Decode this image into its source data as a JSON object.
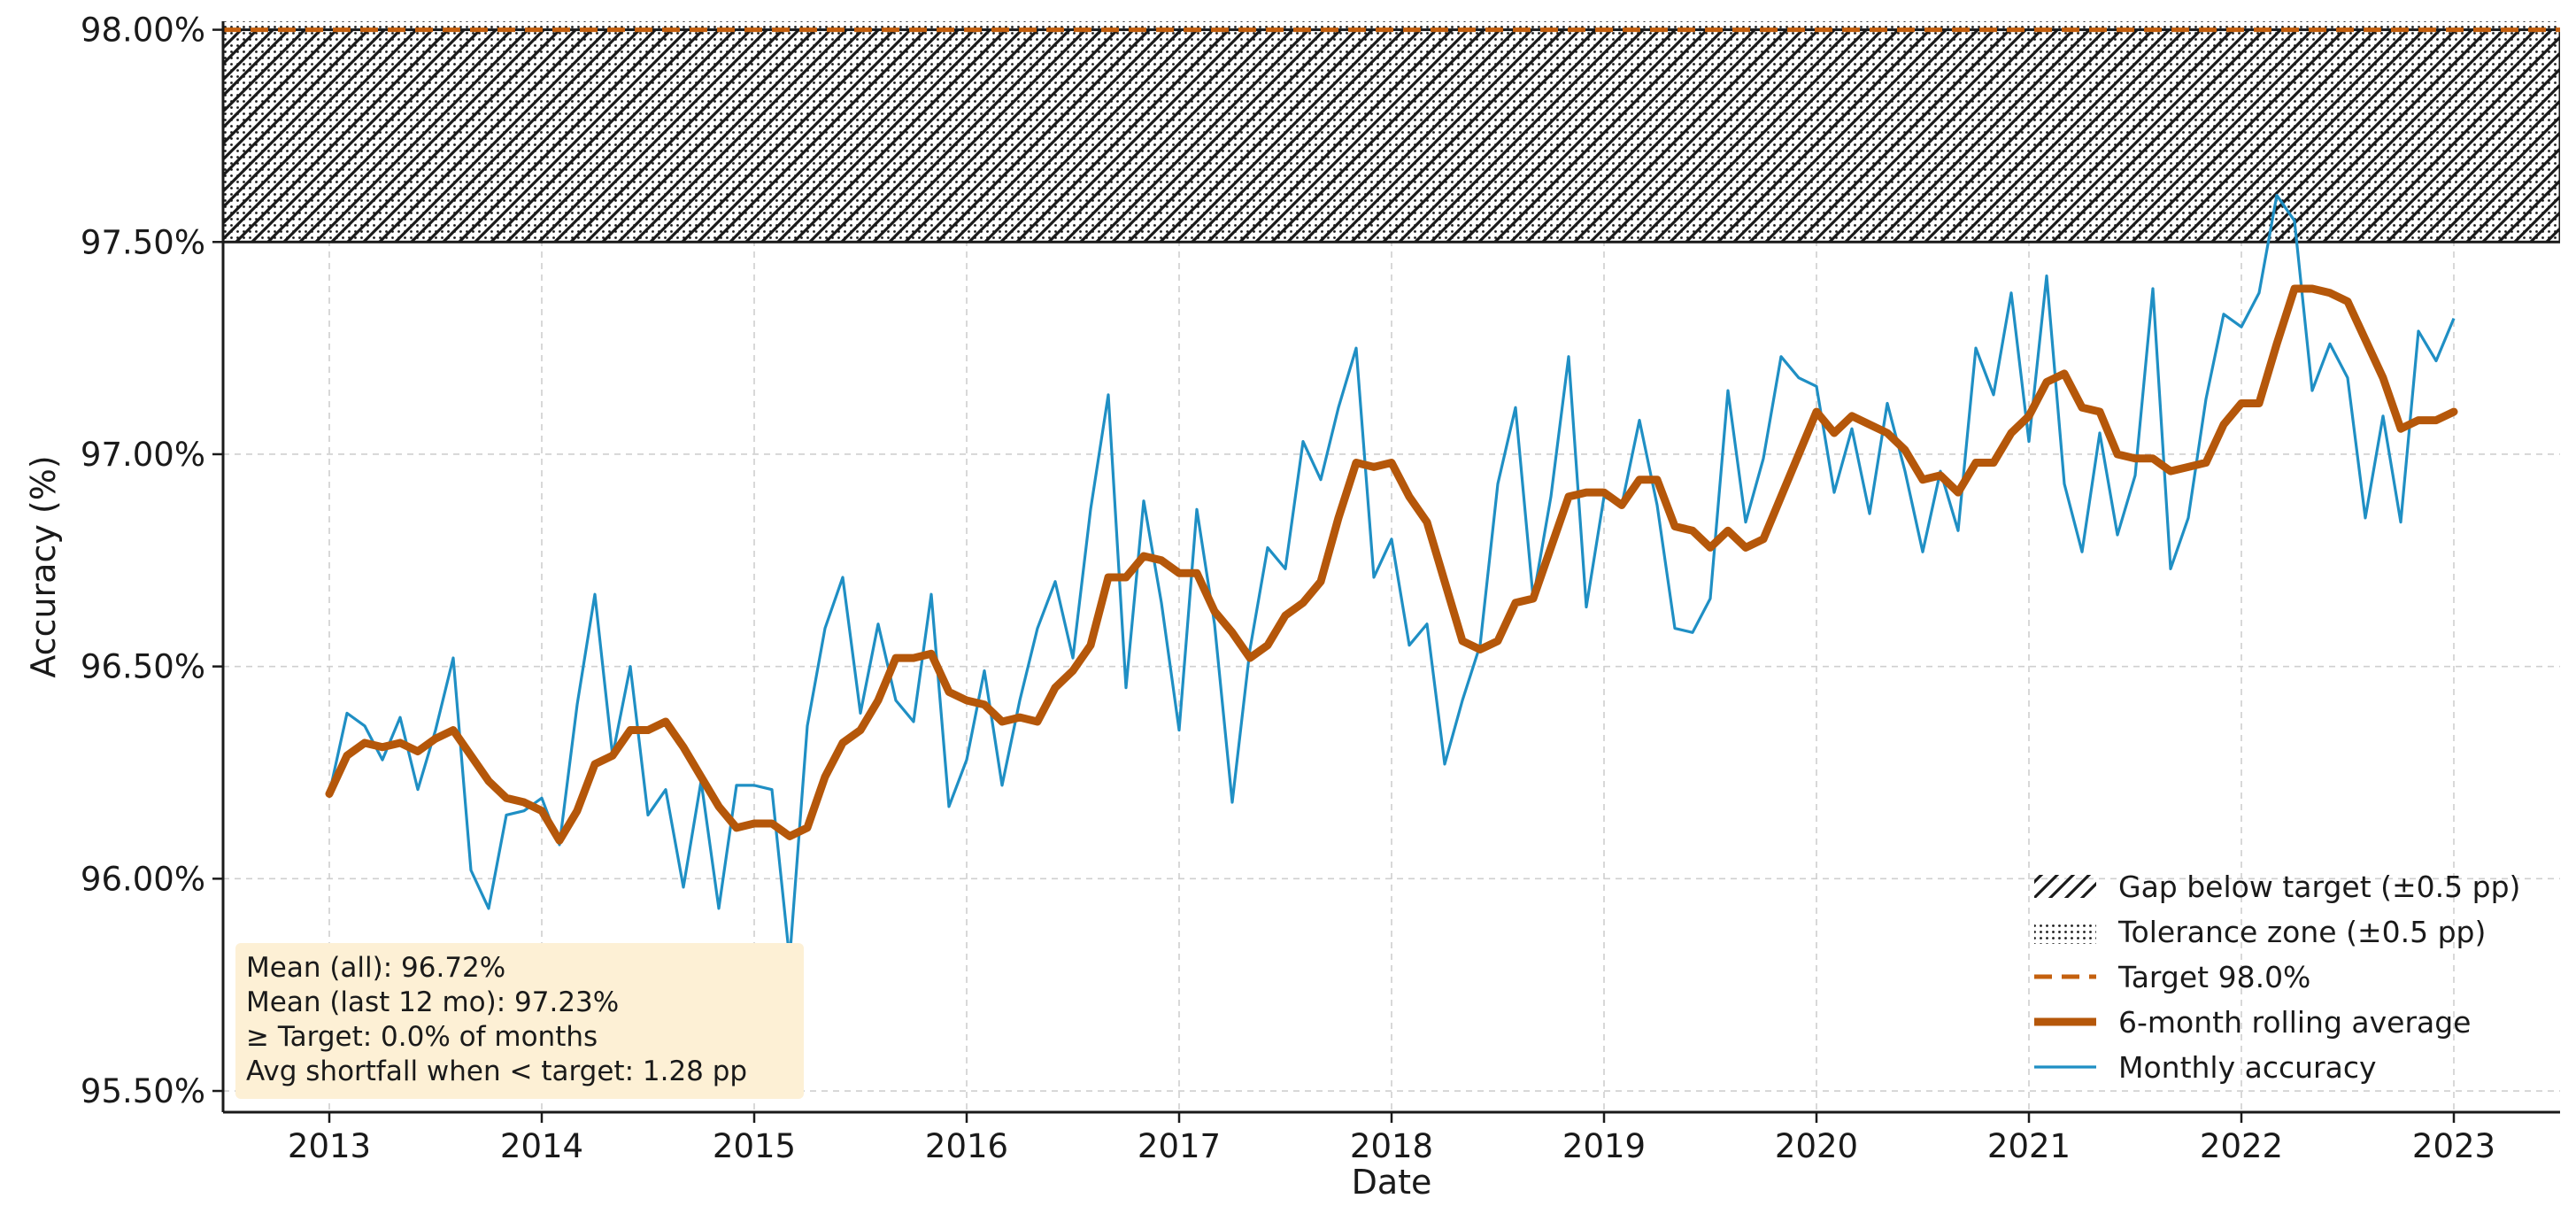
{
  "chart_data": {
    "type": "line",
    "xlabel": "Date",
    "ylabel": "Accuracy (%)",
    "x_range": [
      "2012-07-01",
      "2023-07-01"
    ],
    "ylim": [
      95.45,
      98.02
    ],
    "x_ticks": [
      "2013",
      "2014",
      "2015",
      "2016",
      "2017",
      "2018",
      "2019",
      "2020",
      "2021",
      "2022",
      "2023"
    ],
    "y_ticks": [
      {
        "value": 95.5,
        "label": "95.50%"
      },
      {
        "value": 96.0,
        "label": "96.00%"
      },
      {
        "value": 96.5,
        "label": "96.50%"
      },
      {
        "value": 97.0,
        "label": "97.00%"
      },
      {
        "value": 97.5,
        "label": "97.50%"
      },
      {
        "value": 98.0,
        "label": "98.00%"
      }
    ],
    "grid": true,
    "target": 98.0,
    "gap_band": [
      97.5,
      98.0
    ],
    "tolerance_band": [
      97.5,
      98.5
    ],
    "legend_position": "lower-right",
    "legend": [
      {
        "key": "gap",
        "label": "Gap below target (±0.5 pp)"
      },
      {
        "key": "tolerance",
        "label": "Tolerance zone (±0.5 pp)"
      },
      {
        "key": "target",
        "label": "Target 98.0%"
      },
      {
        "key": "rolling",
        "label": "6-month rolling average"
      },
      {
        "key": "monthly",
        "label": "Monthly accuracy"
      }
    ],
    "stats": [
      "Mean (all): 96.72%",
      "Mean (last 12 mo): 97.23%",
      "≥ Target: 0.0% of months",
      "Avg shortfall when < target: 1.28 pp"
    ],
    "colors": {
      "monthly": "#1f8fc4",
      "rolling": "#b5570a",
      "target": "#c4600e",
      "grid": "#cfcfcf",
      "stats_box": "#fdf0d5"
    },
    "series": [
      {
        "name": "Monthly accuracy",
        "x": [
          "2013-01",
          "2013-02",
          "2013-03",
          "2013-04",
          "2013-05",
          "2013-06",
          "2013-07",
          "2013-08",
          "2013-09",
          "2013-10",
          "2013-11",
          "2013-12",
          "2014-01",
          "2014-02",
          "2014-03",
          "2014-04",
          "2014-05",
          "2014-06",
          "2014-07",
          "2014-08",
          "2014-09",
          "2014-10",
          "2014-11",
          "2014-12",
          "2015-01",
          "2015-02",
          "2015-03",
          "2015-04",
          "2015-05",
          "2015-06",
          "2015-07",
          "2015-08",
          "2015-09",
          "2015-10",
          "2015-11",
          "2015-12",
          "2016-01",
          "2016-02",
          "2016-03",
          "2016-04",
          "2016-05",
          "2016-06",
          "2016-07",
          "2016-08",
          "2016-09",
          "2016-10",
          "2016-11",
          "2016-12",
          "2017-01",
          "2017-02",
          "2017-03",
          "2017-04",
          "2017-05",
          "2017-06",
          "2017-07",
          "2017-08",
          "2017-09",
          "2017-10",
          "2017-11",
          "2017-12",
          "2018-01",
          "2018-02",
          "2018-03",
          "2018-04",
          "2018-05",
          "2018-06",
          "2018-07",
          "2018-08",
          "2018-09",
          "2018-10",
          "2018-11",
          "2018-12",
          "2019-01",
          "2019-02",
          "2019-03",
          "2019-04",
          "2019-05",
          "2019-06",
          "2019-07",
          "2019-08",
          "2019-09",
          "2019-10",
          "2019-11",
          "2019-12",
          "2020-01",
          "2020-02",
          "2020-03",
          "2020-04",
          "2020-05",
          "2020-06",
          "2020-07",
          "2020-08",
          "2020-09",
          "2020-10",
          "2020-11",
          "2020-12",
          "2021-01",
          "2021-02",
          "2021-03",
          "2021-04",
          "2021-05",
          "2021-06",
          "2021-07",
          "2021-08",
          "2021-09",
          "2021-10",
          "2021-11",
          "2021-12",
          "2022-01",
          "2022-02",
          "2022-03",
          "2022-04",
          "2022-05",
          "2022-06",
          "2022-07",
          "2022-08",
          "2022-09",
          "2022-10",
          "2022-11",
          "2022-12",
          "2023-01"
        ],
        "values": [
          96.2,
          96.39,
          96.36,
          96.28,
          96.38,
          96.21,
          96.35,
          96.52,
          96.02,
          95.93,
          96.15,
          96.16,
          96.19,
          96.08,
          96.41,
          96.67,
          96.29,
          96.5,
          96.15,
          96.21,
          95.98,
          96.23,
          95.93,
          96.22,
          96.22,
          96.21,
          95.81,
          96.36,
          96.59,
          96.71,
          96.39,
          96.6,
          96.42,
          96.37,
          96.67,
          96.17,
          96.28,
          96.49,
          96.22,
          96.42,
          96.59,
          96.7,
          96.52,
          96.87,
          97.14,
          96.45,
          96.89,
          96.65,
          96.35,
          96.87,
          96.6,
          96.18,
          96.54,
          96.78,
          96.73,
          97.03,
          96.94,
          97.11,
          97.25,
          96.71,
          96.8,
          96.55,
          96.6,
          96.27,
          96.42,
          96.55,
          96.93,
          97.11,
          96.66,
          96.9,
          97.23,
          96.64,
          96.9,
          96.88,
          97.08,
          96.88,
          96.59,
          96.58,
          96.66,
          97.15,
          96.84,
          96.99,
          97.23,
          97.18,
          97.16,
          96.91,
          97.06,
          96.86,
          97.12,
          96.96,
          96.77,
          96.96,
          96.82,
          97.25,
          97.14,
          97.38,
          97.03,
          97.42,
          96.93,
          96.77,
          97.05,
          96.81,
          96.95,
          97.39,
          96.73,
          96.85,
          97.13,
          97.33,
          97.3,
          97.38,
          97.61,
          97.55,
          97.15,
          97.26,
          97.18,
          96.85,
          97.09,
          96.84,
          97.29,
          97.22,
          97.32
        ]
      },
      {
        "name": "6-month rolling average",
        "x": [
          "2013-01",
          "2013-02",
          "2013-03",
          "2013-04",
          "2013-05",
          "2013-06",
          "2013-07",
          "2013-08",
          "2013-09",
          "2013-10",
          "2013-11",
          "2013-12",
          "2014-01",
          "2014-02",
          "2014-03",
          "2014-04",
          "2014-05",
          "2014-06",
          "2014-07",
          "2014-08",
          "2014-09",
          "2014-10",
          "2014-11",
          "2014-12",
          "2015-01",
          "2015-02",
          "2015-03",
          "2015-04",
          "2015-05",
          "2015-06",
          "2015-07",
          "2015-08",
          "2015-09",
          "2015-10",
          "2015-11",
          "2015-12",
          "2016-01",
          "2016-02",
          "2016-03",
          "2016-04",
          "2016-05",
          "2016-06",
          "2016-07",
          "2016-08",
          "2016-09",
          "2016-10",
          "2016-11",
          "2016-12",
          "2017-01",
          "2017-02",
          "2017-03",
          "2017-04",
          "2017-05",
          "2017-06",
          "2017-07",
          "2017-08",
          "2017-09",
          "2017-10",
          "2017-11",
          "2017-12",
          "2018-01",
          "2018-02",
          "2018-03",
          "2018-04",
          "2018-05",
          "2018-06",
          "2018-07",
          "2018-08",
          "2018-09",
          "2018-10",
          "2018-11",
          "2018-12",
          "2019-01",
          "2019-02",
          "2019-03",
          "2019-04",
          "2019-05",
          "2019-06",
          "2019-07",
          "2019-08",
          "2019-09",
          "2019-10",
          "2019-11",
          "2019-12",
          "2020-01",
          "2020-02",
          "2020-03",
          "2020-04",
          "2020-05",
          "2020-06",
          "2020-07",
          "2020-08",
          "2020-09",
          "2020-10",
          "2020-11",
          "2020-12",
          "2021-01",
          "2021-02",
          "2021-03",
          "2021-04",
          "2021-05",
          "2021-06",
          "2021-07",
          "2021-08",
          "2021-09",
          "2021-10",
          "2021-11",
          "2021-12",
          "2022-01",
          "2022-02",
          "2022-03",
          "2022-04",
          "2022-05",
          "2022-06",
          "2022-07",
          "2022-08",
          "2022-09",
          "2022-10",
          "2022-11",
          "2022-12",
          "2023-01"
        ],
        "values": [
          96.2,
          96.29,
          96.32,
          96.31,
          96.32,
          96.3,
          96.33,
          96.35,
          96.29,
          96.23,
          96.19,
          96.18,
          96.16,
          96.09,
          96.16,
          96.27,
          96.29,
          96.35,
          96.35,
          96.37,
          96.31,
          96.24,
          96.17,
          96.12,
          96.13,
          96.13,
          96.1,
          96.12,
          96.24,
          96.32,
          96.35,
          96.42,
          96.52,
          96.52,
          96.53,
          96.44,
          96.42,
          96.41,
          96.37,
          96.38,
          96.37,
          96.45,
          96.49,
          96.55,
          96.71,
          96.71,
          96.76,
          96.75,
          96.72,
          96.72,
          96.63,
          96.58,
          96.52,
          96.55,
          96.62,
          96.65,
          96.7,
          96.85,
          96.98,
          96.97,
          96.98,
          96.9,
          96.84,
          96.7,
          96.56,
          96.54,
          96.56,
          96.65,
          96.66,
          96.78,
          96.9,
          96.91,
          96.91,
          96.88,
          96.94,
          96.94,
          96.83,
          96.82,
          96.78,
          96.82,
          96.78,
          96.8,
          96.9,
          97.0,
          97.1,
          97.05,
          97.09,
          97.07,
          97.05,
          97.01,
          96.94,
          96.95,
          96.91,
          96.98,
          96.98,
          97.05,
          97.09,
          97.17,
          97.19,
          97.11,
          97.1,
          97.0,
          96.99,
          96.99,
          96.96,
          96.97,
          96.98,
          97.07,
          97.12,
          97.12,
          97.26,
          97.39,
          97.39,
          97.38,
          97.36,
          97.27,
          97.18,
          97.06,
          97.08,
          97.08,
          97.1
        ]
      }
    ]
  }
}
